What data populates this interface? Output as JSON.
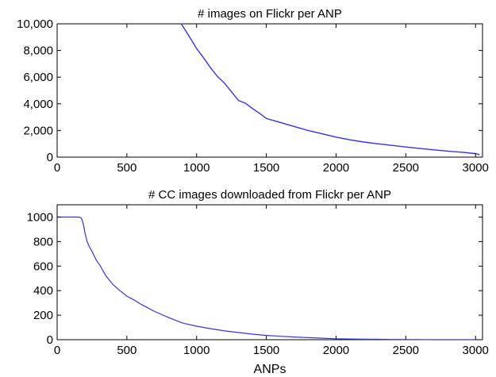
{
  "chart_data": [
    {
      "type": "line",
      "title": "# images on Flickr per ANP",
      "xlabel": "",
      "ylabel": "",
      "xlim": [
        0,
        3050
      ],
      "ylim": [
        0,
        10000
      ],
      "xticks": [
        0,
        500,
        1000,
        1500,
        2000,
        2500,
        3000
      ],
      "yticks": [
        0,
        2000,
        4000,
        6000,
        8000,
        10000
      ],
      "xtick_labels": [
        "0",
        "500",
        "1000",
        "1500",
        "2000",
        "2500",
        "3000"
      ],
      "ytick_labels": [
        "0",
        "2,000",
        "4,000",
        "6,000",
        "8,000",
        "10,000"
      ],
      "grid": false,
      "color": "#3333ee",
      "series": [
        {
          "x": [
            890,
            950,
            1000,
            1050,
            1100,
            1150,
            1200,
            1250,
            1300,
            1350,
            1400,
            1450,
            1500,
            1600,
            1700,
            1800,
            1900,
            2000,
            2100,
            2200,
            2300,
            2400,
            2500,
            2600,
            2700,
            2800,
            2900,
            3000,
            3030
          ],
          "y": [
            10000,
            9000,
            8150,
            7450,
            6700,
            6050,
            5550,
            4900,
            4250,
            4050,
            3650,
            3300,
            2900,
            2600,
            2300,
            2000,
            1750,
            1500,
            1300,
            1130,
            1000,
            880,
            760,
            650,
            550,
            450,
            370,
            270,
            180
          ]
        }
      ]
    },
    {
      "type": "line",
      "title": "# CC images downloaded from Flickr per ANP",
      "xlabel": "ANPs",
      "ylabel": "",
      "xlim": [
        0,
        3050
      ],
      "ylim": [
        0,
        1100
      ],
      "xticks": [
        0,
        500,
        1000,
        1500,
        2000,
        2500,
        3000
      ],
      "yticks": [
        0,
        200,
        400,
        600,
        800,
        1000
      ],
      "xtick_labels": [
        "0",
        "500",
        "1000",
        "1500",
        "2000",
        "2500",
        "3000"
      ],
      "ytick_labels": [
        "0",
        "200",
        "400",
        "600",
        "800",
        "1000"
      ],
      "grid": false,
      "color": "#3333ee",
      "series": [
        {
          "x": [
            0,
            150,
            170,
            180,
            190,
            200,
            215,
            230,
            250,
            280,
            310,
            350,
            400,
            450,
            500,
            550,
            600,
            650,
            700,
            800,
            900,
            1000,
            1100,
            1200,
            1300,
            1400,
            1500,
            1600,
            1700,
            1800,
            1900,
            2000,
            2100,
            2200,
            2300,
            2400,
            2500,
            2600,
            2700,
            2800,
            2900,
            3000
          ],
          "y": [
            1000,
            1000,
            995,
            975,
            930,
            870,
            800,
            760,
            720,
            650,
            600,
            520,
            450,
            400,
            355,
            325,
            290,
            260,
            230,
            180,
            135,
            110,
            90,
            72,
            58,
            45,
            35,
            28,
            22,
            17,
            12,
            8,
            6,
            4,
            3,
            2,
            1,
            1,
            0,
            0,
            0,
            0
          ]
        }
      ]
    }
  ]
}
